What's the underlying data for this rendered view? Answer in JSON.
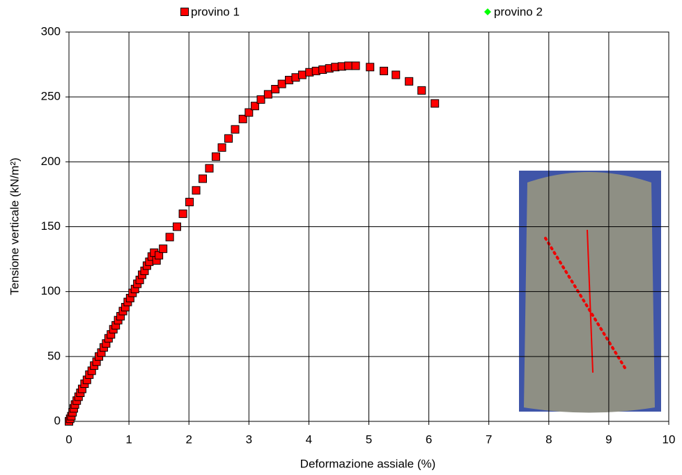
{
  "chart_data": {
    "type": "scatter",
    "x_label": "Deformazione assiale (%)",
    "y_label": "Tensione verticale (kN/m²)",
    "xlim": [
      0,
      10
    ],
    "xticks": [
      0,
      1,
      2,
      3,
      4,
      5,
      6,
      7,
      8,
      9,
      10
    ],
    "ylim": [
      0,
      300
    ],
    "yticks": [
      0,
      50,
      100,
      150,
      200,
      250,
      300
    ],
    "grid": true,
    "legend": "top",
    "series": [
      {
        "name": "provino 1",
        "color": "#ff0000",
        "marker": "square",
        "x": [
          0,
          0.02,
          0.04,
          0.06,
          0.08,
          0.1,
          0.13,
          0.16,
          0.19,
          0.22,
          0.26,
          0.3,
          0.34,
          0.38,
          0.42,
          0.46,
          0.5,
          0.54,
          0.58,
          0.62,
          0.66,
          0.7,
          0.74,
          0.78,
          0.82,
          0.86,
          0.9,
          0.94,
          0.98,
          1.02,
          1.06,
          1.1,
          1.14,
          1.18,
          1.22,
          1.26,
          1.3,
          1.34,
          1.38,
          1.42,
          1.46,
          1.5,
          1.57,
          1.68,
          1.8,
          1.9,
          2.01,
          2.12,
          2.23,
          2.34,
          2.45,
          2.55,
          2.66,
          2.77,
          2.9,
          3.0,
          3.1,
          3.2,
          3.32,
          3.44,
          3.55,
          3.67,
          3.78,
          3.89,
          4.01,
          4.12,
          4.23,
          4.34,
          4.44,
          4.55,
          4.66,
          4.78,
          5.02,
          5.25,
          5.45,
          5.67,
          5.88,
          6.1
        ],
        "y": [
          0,
          2,
          4,
          7,
          10,
          13,
          16,
          19,
          22,
          25,
          29,
          32,
          36,
          39,
          43,
          46,
          50,
          53,
          57,
          60,
          64,
          67,
          71,
          74,
          78,
          81,
          85,
          88,
          92,
          95,
          99,
          102,
          106,
          109,
          113,
          116,
          120,
          123,
          127,
          130,
          124,
          128,
          133,
          142,
          150,
          160,
          169,
          178,
          187,
          195,
          204,
          211,
          218,
          225,
          233,
          238,
          243,
          248,
          252,
          256,
          260,
          263,
          265,
          267,
          269,
          270,
          271,
          272,
          273,
          273.5,
          274,
          274,
          273,
          270,
          267,
          262,
          255,
          245
        ]
      },
      {
        "name": "provino 2",
        "color": "#00ff00",
        "marker": "diamond",
        "x": [],
        "y": []
      }
    ]
  }
}
